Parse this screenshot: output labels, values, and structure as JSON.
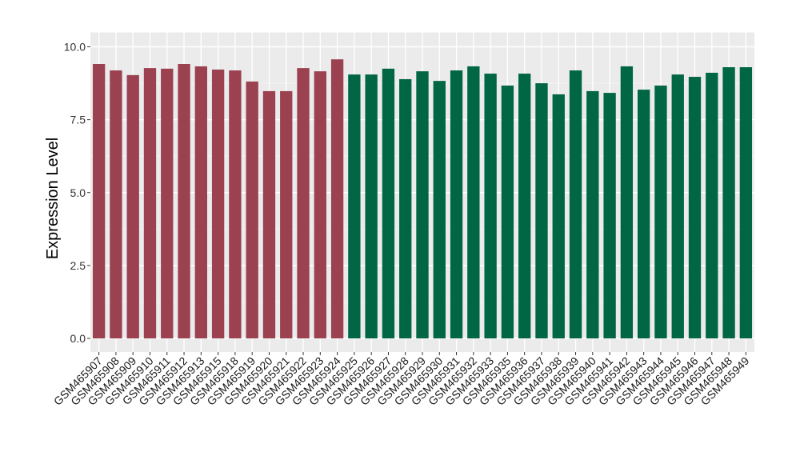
{
  "chart_data": {
    "type": "bar",
    "title": "",
    "xlabel": "",
    "ylabel": "Expression Level",
    "ylim": [
      0,
      10
    ],
    "yticks": [
      "0.0",
      "2.5",
      "5.0",
      "7.5",
      "10.0"
    ],
    "grid": true,
    "legend": "none",
    "categories": [
      "GSM465907",
      "GSM465908",
      "GSM465909",
      "GSM465910",
      "GSM465911",
      "GSM465912",
      "GSM465913",
      "GSM465915",
      "GSM465918",
      "GSM465919",
      "GSM465920",
      "GSM465921",
      "GSM465922",
      "GSM465923",
      "GSM465924",
      "GSM465925",
      "GSM465926",
      "GSM465927",
      "GSM465928",
      "GSM465929",
      "GSM465930",
      "GSM465931",
      "GSM465932",
      "GSM465933",
      "GSM465935",
      "GSM465936",
      "GSM465937",
      "GSM465938",
      "GSM465939",
      "GSM465940",
      "GSM465941",
      "GSM465942",
      "GSM465943",
      "GSM465944",
      "GSM465945",
      "GSM465946",
      "GSM465947",
      "GSM465948",
      "GSM465949"
    ],
    "values": [
      9.41,
      9.19,
      9.03,
      9.27,
      9.25,
      9.41,
      9.33,
      9.22,
      9.19,
      8.81,
      8.48,
      8.48,
      9.27,
      9.16,
      9.57,
      9.05,
      9.05,
      9.25,
      8.89,
      9.16,
      8.83,
      9.19,
      9.33,
      9.08,
      8.67,
      9.08,
      8.75,
      8.37,
      9.19,
      8.48,
      8.42,
      9.33,
      8.53,
      8.67,
      9.05,
      8.97,
      9.11,
      9.3,
      9.3
    ],
    "groups": [
      {
        "count": 15,
        "color": "#9B4150"
      },
      {
        "count": 24,
        "color": "#006644"
      }
    ],
    "panel_bg": "#EBEBEB"
  }
}
